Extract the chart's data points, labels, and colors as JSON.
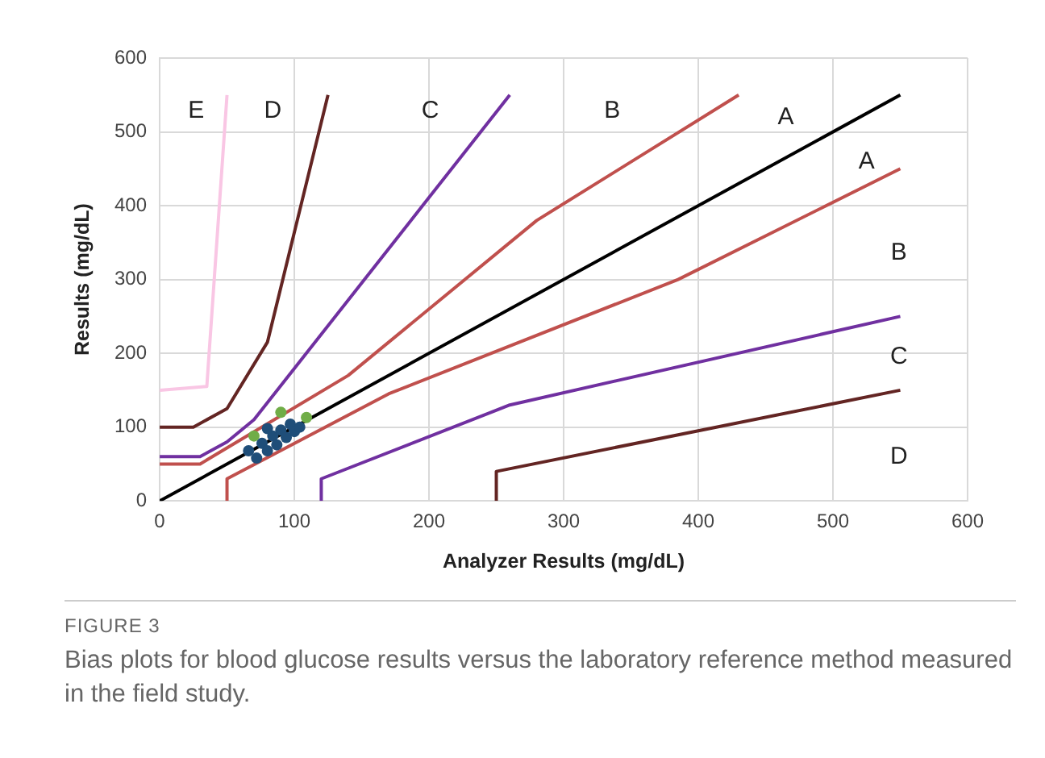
{
  "chart_data": {
    "type": "scatter",
    "xlabel": "Analyzer Results (mg/dL)",
    "ylabel": "Results (mg/dL)",
    "xlim": [
      0,
      600
    ],
    "xticks": [
      0,
      100,
      200,
      300,
      400,
      500,
      600
    ],
    "ylim": [
      0,
      600
    ],
    "yticks": [
      0,
      100,
      200,
      300,
      400,
      500,
      600
    ],
    "grid": true,
    "series": [
      {
        "type": "line",
        "marker": "none",
        "color": "#000000",
        "x": [
          0,
          550
        ],
        "values": [
          0,
          550
        ]
      },
      {
        "type": "line",
        "marker": "none",
        "color": "#c0504d",
        "x": [
          0,
          30,
          140,
          280,
          430
        ],
        "values": [
          50,
          50,
          170,
          380,
          550
        ]
      },
      {
        "type": "line",
        "marker": "none",
        "color": "#c0504d",
        "x": [
          50,
          50,
          170,
          385,
          550
        ],
        "values": [
          0,
          30,
          145,
          300,
          450
        ]
      },
      {
        "type": "line",
        "marker": "none",
        "color": "#7030a0",
        "x": [
          0,
          30,
          50,
          70,
          260
        ],
        "values": [
          60,
          60,
          80,
          110,
          550
        ]
      },
      {
        "type": "line",
        "marker": "none",
        "color": "#7030a0",
        "x": [
          120,
          120,
          260,
          550
        ],
        "values": [
          0,
          30,
          130,
          250
        ]
      },
      {
        "type": "line",
        "marker": "none",
        "color": "#632523",
        "x": [
          0,
          25,
          50,
          80,
          125
        ],
        "values": [
          100,
          100,
          125,
          215,
          550
        ]
      },
      {
        "type": "line",
        "marker": "none",
        "color": "#632523",
        "x": [
          250,
          250,
          550
        ],
        "values": [
          0,
          40,
          150
        ]
      },
      {
        "type": "line",
        "marker": "none",
        "color": "#f9c6e4",
        "x": [
          0,
          35,
          50
        ],
        "values": [
          150,
          155,
          550
        ]
      },
      {
        "marker": "circle",
        "color": "#1f4e79",
        "x": [
          66,
          72,
          76,
          80,
          84,
          87,
          90,
          94,
          97,
          100,
          104,
          80
        ],
        "values": [
          68,
          58,
          78,
          68,
          88,
          76,
          96,
          86,
          104,
          94,
          100,
          98
        ]
      },
      {
        "marker": "circle",
        "color": "#70ad47",
        "x": [
          70,
          90,
          109
        ],
        "values": [
          88,
          120,
          113
        ]
      }
    ],
    "annotations": [
      "E",
      "D",
      "C",
      "B",
      "A",
      "A",
      "B",
      "C",
      "D",
      "FIGURE 3",
      "Bias plots for blood glucose results versus the laboratory reference method measured in the field study."
    ]
  }
}
